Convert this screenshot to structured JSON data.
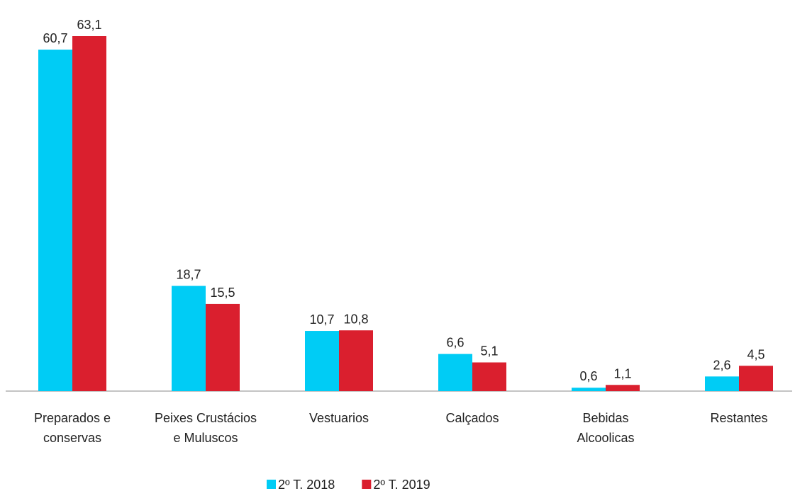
{
  "chart_data": {
    "type": "bar",
    "categories": [
      [
        "Preparados e",
        "conservas"
      ],
      [
        "Peixes Crustácios",
        "e Muluscos"
      ],
      [
        "Vestuarios"
      ],
      [
        "Calçados"
      ],
      [
        "Bebidas",
        "Alcoolicas"
      ],
      [
        "Restantes"
      ]
    ],
    "series": [
      {
        "name": "2º T. 2018",
        "color": "#00ccf5",
        "values": [
          60.7,
          18.7,
          10.7,
          6.6,
          0.6,
          2.6
        ],
        "value_labels": [
          "60,7",
          "18,7",
          "10,7",
          "6,6",
          "0,6",
          "2,6"
        ]
      },
      {
        "name": "2º T. 2019",
        "color": "#da1f2e",
        "values": [
          63.1,
          15.5,
          10.8,
          5.1,
          1.1,
          4.5
        ],
        "value_labels": [
          "63,1",
          "15,5",
          "10,8",
          "5,1",
          "1,1",
          "4,5"
        ]
      }
    ]
  }
}
